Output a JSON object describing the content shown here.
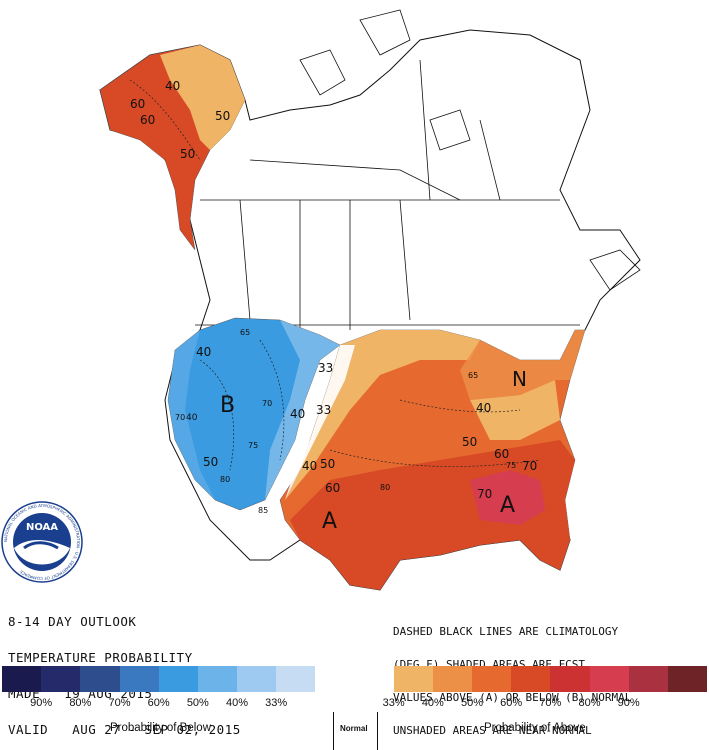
{
  "outlook": {
    "line1": "8-14 DAY OUTLOOK",
    "line2": "TEMPERATURE PROBABILITY",
    "line3": "MADE   19 AUG 2015",
    "line4": "VALID   AUG 27 - SEP 02, 2015"
  },
  "legend_note": {
    "line1": "DASHED BLACK LINES ARE CLIMATOLOGY",
    "line2": "(DEG F) SHADED AREAS ARE FCST",
    "line3": "VALUES ABOVE (A) OR BELOW (B) NORMAL",
    "line4": "UNSHADED AREAS ARE NEAR-NORMAL"
  },
  "map_labels": {
    "below_letter": "B",
    "above_letter_west": "A",
    "above_letter_se": "A",
    "near_normal_letter": "N",
    "c40_ak": "40",
    "c50_ak1": "50",
    "c50_ak2": "50",
    "c60_ak1": "60",
    "c60_ak2": "60",
    "c40_pnw": "40",
    "c50_ca": "50",
    "c40_se": "40",
    "c33_a": "33",
    "c33_b": "33",
    "c40_b": "40",
    "c40_c": "40",
    "c50_c": "50",
    "c60_c": "60",
    "c50_d": "50",
    "c60_d": "60",
    "c70_d": "70",
    "c70_e": "70",
    "c40_ne": "40",
    "t65": "65",
    "t70": "70",
    "t75": "75",
    "t80": "80",
    "t85": "85",
    "t80_s": "80",
    "t65_gl": "65",
    "t75_se": "75",
    "t70_w": "70"
  },
  "scale": {
    "colors": [
      "#1a1a4e",
      "#252a6b",
      "#2e4d8c",
      "#3a78bf",
      "#3b9be0",
      "#6cb3ea",
      "#9ec9f0",
      "#c5dcf3",
      "#ffffff",
      "#ffffff",
      "#f0b466",
      "#ec9048",
      "#e66a30",
      "#d84a26",
      "#cc3232",
      "#d63d4f",
      "#a93140",
      "#6e2426"
    ],
    "labels": [
      "90%",
      "80%",
      "70%",
      "60%",
      "50%",
      "40%",
      "33%",
      "33%",
      "40%",
      "50%",
      "60%",
      "70%",
      "80%",
      "90%"
    ]
  },
  "captions": {
    "below": "Probability of Below",
    "normal": "Normal",
    "above": "Probability of Above"
  },
  "logo": {
    "text": "NOAA",
    "ring_text": "NATIONAL OCEANIC AND ATMOSPHERIC ADMINISTRATION · U.S. DEPARTMENT OF COMMERCE"
  }
}
